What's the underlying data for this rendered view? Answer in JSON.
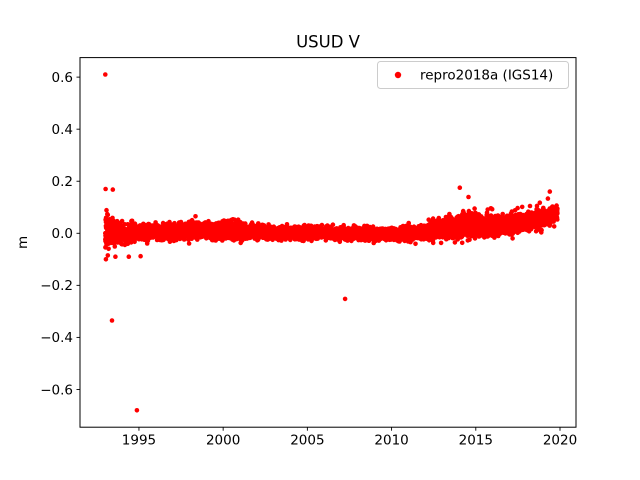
{
  "figure": {
    "background": "#ffffff",
    "frame_color": "#000000",
    "text_color": "#000000"
  },
  "chart_data": {
    "type": "scatter",
    "title": "USUD V",
    "xlabel": "",
    "ylabel": "m",
    "xlim": [
      1991.5,
      2020.95
    ],
    "ylim": [
      -0.745,
      0.675
    ],
    "xticks": [
      1995,
      2000,
      2005,
      2010,
      2015,
      2020
    ],
    "yticks": [
      -0.6,
      -0.4,
      -0.2,
      0.0,
      0.2,
      0.4,
      0.6
    ],
    "grid": false,
    "legend_position": "upper right",
    "series": [
      {
        "name": "repro2018a (IGS14)",
        "color": "#ff0000",
        "marker": "dot",
        "marker_radius": 2.3,
        "sampling": {
          "start": 1993.0,
          "end": 2019.85,
          "step": 0.004,
          "seed": 42
        },
        "band_trend": [
          [
            1993.0,
            0.01,
            0.035
          ],
          [
            1993.4,
            0.0,
            0.025
          ],
          [
            1994.0,
            0.0,
            0.018
          ],
          [
            1995.0,
            0.002,
            0.015
          ],
          [
            1996.0,
            0.004,
            0.014
          ],
          [
            1997.0,
            0.006,
            0.014
          ],
          [
            1998.2,
            0.014,
            0.017
          ],
          [
            1999.0,
            0.008,
            0.014
          ],
          [
            2000.5,
            0.014,
            0.018
          ],
          [
            2001.5,
            0.004,
            0.013
          ],
          [
            2003.0,
            0.002,
            0.011
          ],
          [
            2005.0,
            0.002,
            0.011
          ],
          [
            2007.0,
            0.0,
            0.011
          ],
          [
            2009.0,
            -0.004,
            0.011
          ],
          [
            2010.5,
            -0.005,
            0.012
          ],
          [
            2012.0,
            0.006,
            0.014
          ],
          [
            2013.5,
            0.02,
            0.018
          ],
          [
            2014.3,
            0.03,
            0.022
          ],
          [
            2015.5,
            0.028,
            0.018
          ],
          [
            2016.5,
            0.034,
            0.018
          ],
          [
            2017.5,
            0.04,
            0.018
          ],
          [
            2018.5,
            0.05,
            0.018
          ],
          [
            2019.3,
            0.062,
            0.016
          ],
          [
            2019.85,
            0.08,
            0.015
          ]
        ],
        "spikes": {
          "after": 2012,
          "probability": 0.025,
          "scale": 0.04
        },
        "outliers": [
          [
            1993.0,
            0.61
          ],
          [
            1993.02,
            0.17
          ],
          [
            1993.45,
            0.168
          ],
          [
            1993.4,
            -0.335
          ],
          [
            1993.15,
            -0.085
          ],
          [
            1993.6,
            -0.09
          ],
          [
            1994.4,
            -0.09
          ],
          [
            1994.88,
            -0.68
          ],
          [
            1995.1,
            -0.088
          ],
          [
            2007.24,
            -0.252
          ],
          [
            2014.05,
            0.175
          ]
        ]
      }
    ]
  }
}
